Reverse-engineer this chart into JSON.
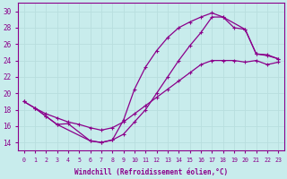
{
  "xlabel": "Windchill (Refroidissement éolien,°C)",
  "bg_color": "#c8ecec",
  "line_color": "#8b008b",
  "grid_color": "#b8dede",
  "xlim": [
    -0.5,
    23.5
  ],
  "ylim": [
    13.0,
    31.0
  ],
  "xticks": [
    0,
    1,
    2,
    3,
    4,
    5,
    6,
    7,
    8,
    9,
    10,
    11,
    12,
    13,
    14,
    15,
    16,
    17,
    18,
    19,
    20,
    21,
    22,
    23
  ],
  "yticks": [
    14,
    16,
    18,
    20,
    22,
    24,
    26,
    28,
    30
  ],
  "curve1_x": [
    0,
    1,
    2,
    3,
    4,
    5,
    6,
    7,
    8,
    9,
    10,
    11,
    12,
    13,
    14,
    15,
    16,
    17,
    18,
    19,
    20,
    21,
    22,
    23
  ],
  "curve1_y": [
    19.0,
    18.2,
    17.5,
    17.0,
    16.5,
    16.2,
    15.8,
    15.5,
    15.8,
    16.5,
    17.5,
    18.5,
    19.5,
    20.5,
    21.5,
    22.5,
    23.5,
    24.0,
    24.0,
    24.0,
    23.8,
    24.0,
    23.5,
    23.8
  ],
  "curve2_x": [
    0,
    1,
    2,
    3,
    4,
    6,
    7,
    8,
    9,
    10,
    11,
    12,
    13,
    14,
    15,
    16,
    17,
    18,
    20,
    21,
    22,
    23
  ],
  "curve2_y": [
    19.0,
    18.2,
    17.2,
    16.2,
    16.3,
    14.2,
    14.0,
    14.3,
    16.7,
    20.5,
    23.2,
    25.2,
    26.8,
    28.0,
    28.7,
    29.3,
    29.8,
    29.3,
    27.8,
    24.8,
    24.6,
    24.2
  ],
  "curve3_x": [
    1,
    2,
    3,
    6,
    7,
    8,
    9,
    10,
    11,
    12,
    13,
    14,
    15,
    16,
    17,
    18,
    19,
    20,
    21,
    22,
    23
  ],
  "curve3_y": [
    18.2,
    17.2,
    16.2,
    14.2,
    14.0,
    14.3,
    15.0,
    16.5,
    18.0,
    20.0,
    22.0,
    24.0,
    25.8,
    27.4,
    29.3,
    29.3,
    28.0,
    27.8,
    24.8,
    24.7,
    24.2
  ]
}
